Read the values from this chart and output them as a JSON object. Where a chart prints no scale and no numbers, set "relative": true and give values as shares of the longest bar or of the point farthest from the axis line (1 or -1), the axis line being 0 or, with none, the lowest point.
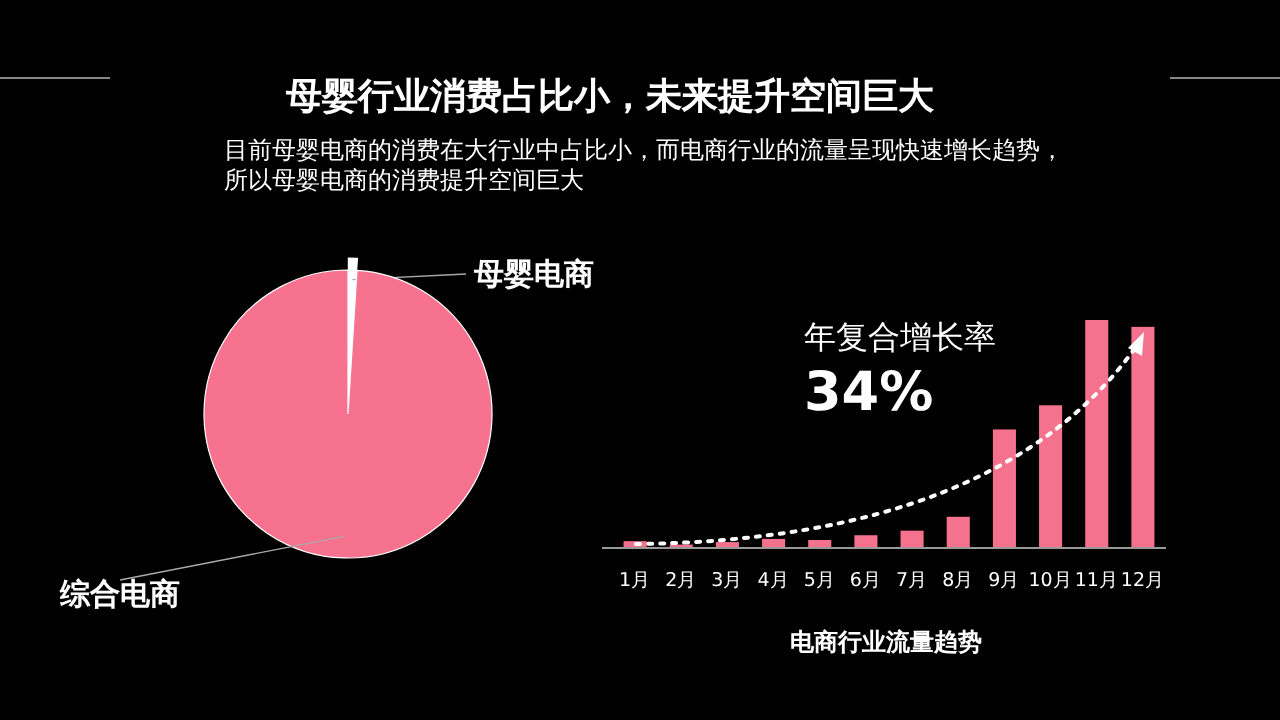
{
  "chart_data": [
    {
      "type": "pie",
      "title": "母婴行业消费占比小，未来提升空间巨大",
      "subtitle": "目前母婴电商的消费在大行业中占比小，而电商行业的流量呈现快速增长趋势，所以母婴电商的消费提升空间巨大",
      "categories": [
        "母婴电商",
        "综合电商"
      ],
      "values": [
        1,
        99
      ],
      "colors": [
        "#ffffff",
        "#f7728f"
      ]
    },
    {
      "type": "bar",
      "relative": true,
      "categories": [
        "1月",
        "2月",
        "3月",
        "4月",
        "5月",
        "6月",
        "7月",
        "8月",
        "9月",
        "10月",
        "11月",
        "12月"
      ],
      "values": [
        0.03,
        0.015,
        0.026,
        0.04,
        0.035,
        0.056,
        0.076,
        0.137,
        0.52,
        0.626,
        1,
        0.97
      ],
      "color": "#f5728f",
      "xlabel": "电商行业流量趋势",
      "annotations": [
        "年复合增长率",
        "34%"
      ]
    }
  ]
}
